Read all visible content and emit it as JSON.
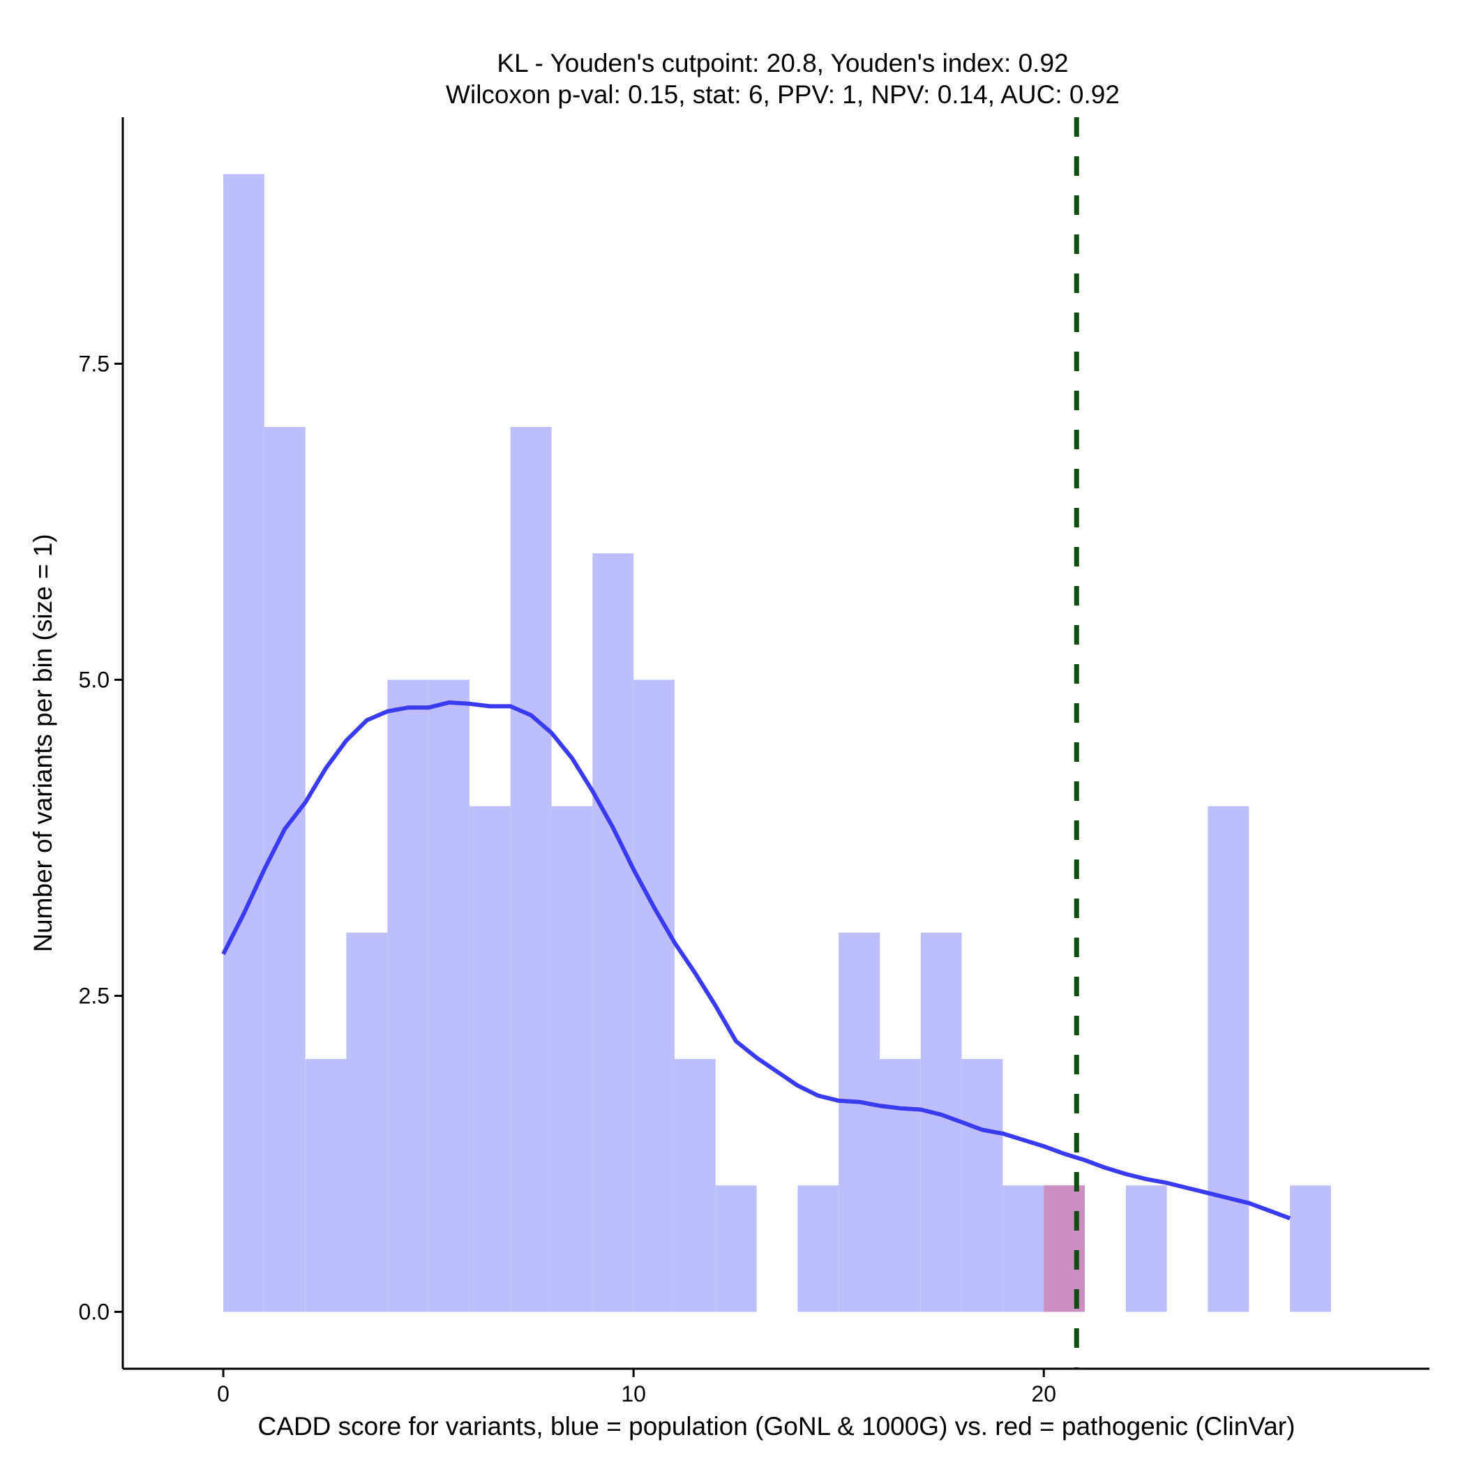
{
  "chart_data": {
    "type": "histogram",
    "title_line1": "KL - Youden's cutpoint: 20.8, Youden's index: 0.92",
    "title_line2": "Wilcoxon p-val: 0.15, stat: 6, PPV: 1, NPV: 0.14, AUC: 0.92",
    "xlabel": "CADD score for variants, blue = population (GoNL & 1000G) vs. red = pathogenic (ClinVar)",
    "ylabel": "Number of variants per bin (size = 1)",
    "xlim": [
      -2.45,
      29.4
    ],
    "ylim": [
      -0.45,
      9.45
    ],
    "x_ticks": [
      0,
      10,
      20
    ],
    "y_ticks": [
      0.0,
      2.5,
      5.0,
      7.5
    ],
    "x_tick_labels": [
      "0",
      "10",
      "20"
    ],
    "y_tick_labels": [
      "0.0",
      "2.5",
      "5.0",
      "7.5"
    ],
    "bin_width": 1,
    "population": {
      "name": "population (GoNL & 1000G)",
      "color": "#bebefc",
      "bin_starts": [
        0,
        1,
        2,
        3,
        4,
        5,
        6,
        7,
        8,
        9,
        10,
        11,
        12,
        13,
        14,
        15,
        16,
        17,
        18,
        19,
        20,
        21,
        22,
        23,
        24,
        25,
        26
      ],
      "counts": [
        9,
        7,
        2,
        3,
        5,
        5,
        4,
        7,
        4,
        6,
        5,
        2,
        1,
        0,
        1,
        3,
        2,
        3,
        2,
        1,
        1,
        0,
        1,
        0,
        4,
        0,
        1
      ]
    },
    "pathogenic": {
      "name": "pathogenic (ClinVar)",
      "color": "#cc8fc1",
      "bin_starts": [
        20
      ],
      "counts": [
        1
      ]
    },
    "density_curve": {
      "color": "#3a3af0",
      "x": [
        0,
        0.5,
        1,
        1.5,
        2,
        2.5,
        3,
        3.5,
        4,
        4.5,
        5,
        5.5,
        6,
        6.5,
        7,
        7.5,
        8,
        8.5,
        9,
        9.5,
        10,
        10.5,
        11,
        11.5,
        12,
        12.5,
        13,
        13.5,
        14,
        14.5,
        15,
        15.5,
        16,
        16.5,
        17,
        17.5,
        18,
        18.5,
        19,
        19.5,
        20,
        20.5,
        21,
        21.5,
        22,
        22.5,
        23,
        23.5,
        24,
        24.5,
        25,
        25.5,
        26
      ],
      "y": [
        2.83,
        3.15,
        3.5,
        3.82,
        4.03,
        4.3,
        4.52,
        4.68,
        4.75,
        4.78,
        4.78,
        4.82,
        4.81,
        4.79,
        4.79,
        4.72,
        4.58,
        4.38,
        4.12,
        3.83,
        3.5,
        3.2,
        2.92,
        2.68,
        2.42,
        2.14,
        2.01,
        1.9,
        1.79,
        1.71,
        1.67,
        1.66,
        1.63,
        1.61,
        1.6,
        1.56,
        1.5,
        1.44,
        1.41,
        1.36,
        1.31,
        1.25,
        1.2,
        1.14,
        1.09,
        1.05,
        1.02,
        0.98,
        0.94,
        0.9,
        0.86,
        0.8,
        0.74
      ]
    },
    "cutpoint": {
      "x": 20.8,
      "label": "Youden's cutpoint",
      "color": "#0d4d0d",
      "style": "dashed"
    },
    "grid": false,
    "legend": "none"
  }
}
